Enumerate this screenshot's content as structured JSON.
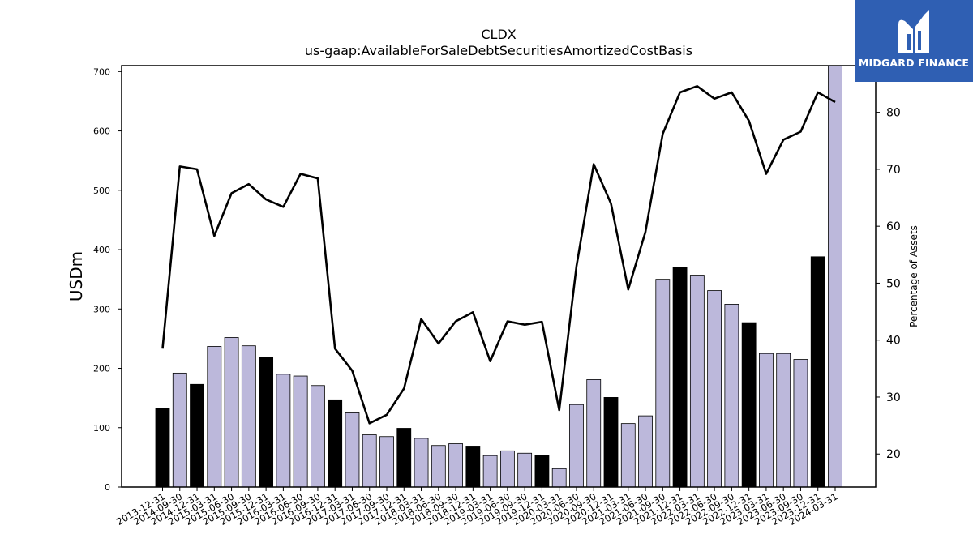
{
  "chart_data": {
    "type": "bar",
    "title": "CLDX",
    "subtitle": "us-gaap:AvailableForSaleDebtSecuritiesAmortizedCostBasis",
    "ylabel": "USDm",
    "y2label": "Percentage of Assets",
    "ylim": [
      0,
      710
    ],
    "y2lim": [
      14.2,
      88.2
    ],
    "yticks": [
      0,
      100,
      200,
      300,
      400,
      500,
      600,
      700
    ],
    "y2ticks": [
      20,
      30,
      40,
      50,
      60,
      70,
      80
    ],
    "categories": [
      "2013-12-31",
      "2014-09-30",
      "2014-12-31",
      "2015-03-31",
      "2015-06-30",
      "2015-09-30",
      "2015-12-31",
      "2016-03-31",
      "2016-06-30",
      "2016-09-30",
      "2016-12-31",
      "2017-03-31",
      "2017-06-30",
      "2017-09-30",
      "2017-12-31",
      "2018-03-31",
      "2018-06-30",
      "2018-09-30",
      "2018-12-31",
      "2019-03-31",
      "2019-06-30",
      "2019-09-30",
      "2019-12-31",
      "2020-03-31",
      "2020-06-30",
      "2020-09-30",
      "2020-12-31",
      "2021-03-31",
      "2021-06-30",
      "2021-09-30",
      "2021-12-31",
      "2022-03-31",
      "2022-06-30",
      "2022-09-30",
      "2022-12-31",
      "2023-03-31",
      "2023-06-30",
      "2023-09-30",
      "2023-12-31",
      "2024-03-31"
    ],
    "series": [
      {
        "kind": "bar",
        "values": [
          133,
          192,
          173,
          237,
          252,
          238,
          218,
          190,
          187,
          171,
          147,
          125,
          88,
          85,
          99,
          82,
          70,
          73,
          69,
          53,
          61,
          57,
          53,
          31,
          139,
          181,
          151,
          107,
          120,
          350,
          370,
          357,
          331,
          308,
          277,
          225,
          225,
          215,
          388,
          710
        ],
        "year_end_flags": [
          true,
          false,
          true,
          false,
          false,
          false,
          true,
          false,
          false,
          false,
          true,
          false,
          false,
          false,
          true,
          false,
          false,
          false,
          true,
          false,
          false,
          false,
          true,
          false,
          false,
          false,
          true,
          false,
          false,
          false,
          true,
          false,
          false,
          false,
          true,
          false,
          false,
          false,
          true,
          false
        ],
        "colors": {
          "regular": "#bcb8db",
          "year_end": "#000000"
        }
      },
      {
        "kind": "line",
        "axis": "right",
        "values": [
          38.5,
          70.5,
          70.0,
          58.3,
          65.8,
          67.4,
          64.7,
          63.4,
          69.2,
          68.4,
          38.5,
          34.6,
          25.4,
          26.9,
          31.5,
          43.7,
          39.4,
          43.3,
          44.9,
          36.3,
          43.3,
          42.7,
          43.2,
          27.7,
          53.0,
          70.9,
          64.0,
          48.9,
          59.0,
          76.2,
          83.5,
          84.6,
          82.4,
          83.5,
          78.5,
          69.2,
          75.2,
          76.6,
          83.5,
          81.8
        ],
        "color": "#000000"
      }
    ],
    "grid": false
  },
  "brand": {
    "name": "MIDGARD FINANCE",
    "background": "#2f5fb3",
    "icon": "midgard-logo-icon"
  }
}
